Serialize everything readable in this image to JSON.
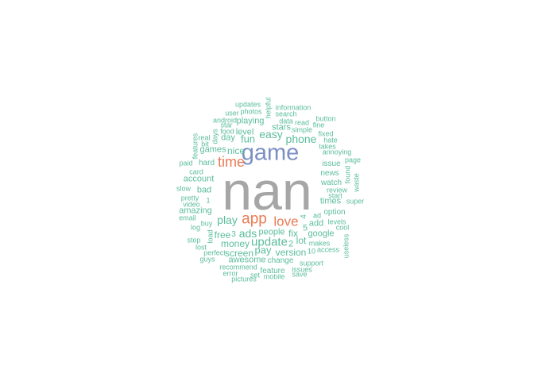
{
  "colors": {
    "background": "#ffffff",
    "gray": "#a6a6a6",
    "blue": "#7b8fc4",
    "orange": "#ea7a55",
    "green": "#5bbd9c"
  },
  "words": [
    {
      "text": "nan",
      "color": "gray"
    },
    {
      "text": "game",
      "color": "blue"
    },
    {
      "text": "time",
      "color": "orange"
    },
    {
      "text": "app",
      "color": "orange"
    },
    {
      "text": "love",
      "color": "orange"
    },
    {
      "text": "updates",
      "color": "green"
    },
    {
      "text": "user",
      "color": "green"
    },
    {
      "text": "photos",
      "color": "green"
    },
    {
      "text": "helpful",
      "color": "green"
    },
    {
      "text": "information",
      "color": "green"
    },
    {
      "text": "search",
      "color": "green"
    },
    {
      "text": "android",
      "color": "green"
    },
    {
      "text": "playing",
      "color": "green"
    },
    {
      "text": "data",
      "color": "green"
    },
    {
      "text": "read",
      "color": "green"
    },
    {
      "text": "button",
      "color": "green"
    },
    {
      "text": "star",
      "color": "green"
    },
    {
      "text": "fine",
      "color": "green"
    },
    {
      "text": "food",
      "color": "green"
    },
    {
      "text": "stars",
      "color": "green"
    },
    {
      "text": "simple",
      "color": "green"
    },
    {
      "text": "level",
      "color": "green"
    },
    {
      "text": "fixed",
      "color": "green"
    },
    {
      "text": "days",
      "color": "green"
    },
    {
      "text": "easy",
      "color": "green"
    },
    {
      "text": "real",
      "color": "green"
    },
    {
      "text": "day",
      "color": "green"
    },
    {
      "text": "phone",
      "color": "green"
    },
    {
      "text": "hate",
      "color": "green"
    },
    {
      "text": "fun",
      "color": "green"
    },
    {
      "text": "features",
      "color": "green"
    },
    {
      "text": "bit",
      "color": "green"
    },
    {
      "text": "takes",
      "color": "green"
    },
    {
      "text": "games",
      "color": "green"
    },
    {
      "text": "nice",
      "color": "green"
    },
    {
      "text": "annoying",
      "color": "green"
    },
    {
      "text": "paid",
      "color": "green"
    },
    {
      "text": "hard",
      "color": "green"
    },
    {
      "text": "page",
      "color": "green"
    },
    {
      "text": "issue",
      "color": "green"
    },
    {
      "text": "card",
      "color": "green"
    },
    {
      "text": "found",
      "color": "green"
    },
    {
      "text": "news",
      "color": "green"
    },
    {
      "text": "account",
      "color": "green"
    },
    {
      "text": "waste",
      "color": "green"
    },
    {
      "text": "watch",
      "color": "green"
    },
    {
      "text": "slow",
      "color": "green"
    },
    {
      "text": "bad",
      "color": "green"
    },
    {
      "text": "review",
      "color": "green"
    },
    {
      "text": "start",
      "color": "green"
    },
    {
      "text": "pretty",
      "color": "green"
    },
    {
      "text": "times",
      "color": "green"
    },
    {
      "text": "super",
      "color": "green"
    },
    {
      "text": "1",
      "color": "green"
    },
    {
      "text": "video",
      "color": "green"
    },
    {
      "text": "option",
      "color": "green"
    },
    {
      "text": "amazing",
      "color": "green"
    },
    {
      "text": "4",
      "color": "green"
    },
    {
      "text": "ad",
      "color": "green"
    },
    {
      "text": "play",
      "color": "green"
    },
    {
      "text": "email",
      "color": "green"
    },
    {
      "text": "levels",
      "color": "green"
    },
    {
      "text": "buy",
      "color": "green"
    },
    {
      "text": "add",
      "color": "green"
    },
    {
      "text": "log",
      "color": "green"
    },
    {
      "text": "cool",
      "color": "green"
    },
    {
      "text": "5",
      "color": "green"
    },
    {
      "text": "load",
      "color": "green"
    },
    {
      "text": "free",
      "color": "green"
    },
    {
      "text": "3",
      "color": "green"
    },
    {
      "text": "ads",
      "color": "green"
    },
    {
      "text": "people",
      "color": "green"
    },
    {
      "text": "fix",
      "color": "green"
    },
    {
      "text": "google",
      "color": "green"
    },
    {
      "text": "stop",
      "color": "green"
    },
    {
      "text": "update",
      "color": "green"
    },
    {
      "text": "lot",
      "color": "green"
    },
    {
      "text": "useless",
      "color": "green"
    },
    {
      "text": "lost",
      "color": "green"
    },
    {
      "text": "money",
      "color": "green"
    },
    {
      "text": "2",
      "color": "green"
    },
    {
      "text": "makes",
      "color": "green"
    },
    {
      "text": "perfect",
      "color": "green"
    },
    {
      "text": "pay",
      "color": "green"
    },
    {
      "text": "version",
      "color": "green"
    },
    {
      "text": "10",
      "color": "green"
    },
    {
      "text": "access",
      "color": "green"
    },
    {
      "text": "screen",
      "color": "green"
    },
    {
      "text": "guys",
      "color": "green"
    },
    {
      "text": "awesome",
      "color": "green"
    },
    {
      "text": "change",
      "color": "green"
    },
    {
      "text": "support",
      "color": "green"
    },
    {
      "text": "recommend",
      "color": "green"
    },
    {
      "text": "feature",
      "color": "green"
    },
    {
      "text": "issues",
      "color": "green"
    },
    {
      "text": "error",
      "color": "green"
    },
    {
      "text": "set",
      "color": "green"
    },
    {
      "text": "save",
      "color": "green"
    },
    {
      "text": "pictures",
      "color": "green"
    },
    {
      "text": "mobile",
      "color": "green"
    }
  ]
}
